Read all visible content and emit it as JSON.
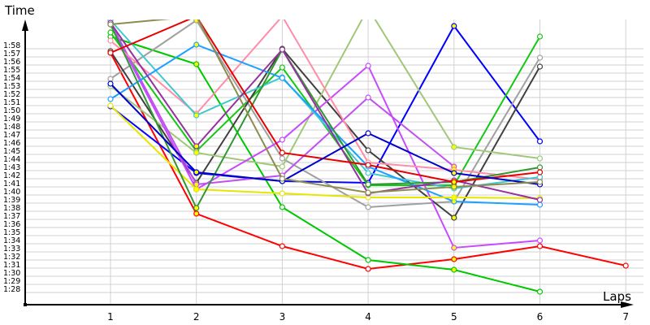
{
  "chart_data": {
    "type": "line",
    "title": "",
    "xlabel": "Laps",
    "ylabel": "Time",
    "x": [
      1,
      2,
      3,
      4,
      5,
      6,
      7
    ],
    "x_ticks": [
      "1",
      "2",
      "3",
      "4",
      "5",
      "6",
      "7"
    ],
    "y_ticks": [
      "1:58",
      "1:57",
      "1:56",
      "1:55",
      "1:54",
      "1:53",
      "1:52",
      "1:51",
      "1:50",
      "1:49",
      "1:48",
      "1:47",
      "1:46",
      "1:45",
      "1:44",
      "1:43",
      "1:42",
      "1:41",
      "1:40",
      "1:39",
      "1:38",
      "1:37",
      "1:36",
      "1:35",
      "1:34",
      "1:33",
      "1:32",
      "1:31",
      "1:30",
      "1:29",
      "1:28"
    ],
    "y_unit": "seconds (m:ss)",
    "ylim_seconds": [
      86.5,
      121.5
    ],
    "grid": true,
    "legend": "none",
    "series": [
      {
        "name": "red-a",
        "color": "#ff0000",
        "values": [
          117.5,
          97.7,
          93.7,
          90.9,
          92.1,
          93.7,
          91.3
        ]
      },
      {
        "name": "green-a",
        "color": "#00c800",
        "values": [
          119.5,
          116.1,
          98.5,
          92.0,
          90.8,
          88.1,
          null
        ]
      },
      {
        "name": "blue-a",
        "color": "#0000ff",
        "values": [
          110.9,
          102.7,
          101.7,
          101.5,
          120.8,
          106.6,
          null
        ]
      },
      {
        "name": "green-b",
        "color": "#14c814",
        "values": [
          120.0,
          105.4,
          115.7,
          101.2,
          101.2,
          119.5,
          null
        ]
      },
      {
        "name": "grey-a",
        "color": "#a0a0a0",
        "values": [
          114.3,
          121.5,
          104.5,
          98.5,
          99.2,
          116.9,
          null
        ]
      },
      {
        "name": "darkgrey-a",
        "color": "#404040",
        "values": [
          117.7,
          101.5,
          118.0,
          105.5,
          97.2,
          115.8,
          null
        ]
      },
      {
        "name": "lightgreen-a",
        "color": "#a0c878",
        "values": [
          113.4,
          105.2,
          103.5,
          123.0,
          105.9,
          104.5,
          null
        ]
      },
      {
        "name": "magenta-a",
        "color": "#c84aff",
        "values": [
          121.0,
          100.7,
          106.8,
          115.9,
          93.5,
          94.4,
          null
        ]
      },
      {
        "name": "magenta-b",
        "color": "#c050f0",
        "values": [
          121.2,
          101.3,
          102.4,
          112.0,
          103.5,
          null,
          null
        ]
      },
      {
        "name": "pink-a",
        "color": "#ff8ca8",
        "values": [
          119.0,
          110.0,
          122.0,
          104.0,
          103.1,
          101.9,
          null
        ]
      },
      {
        "name": "cyan-a",
        "color": "#40c8d0",
        "values": [
          121.5,
          109.8,
          114.5,
          102.7,
          100.8,
          102.2,
          null
        ]
      },
      {
        "name": "skyblue-a",
        "color": "#1ea0ff",
        "values": [
          111.8,
          118.5,
          114.4,
          103.5,
          99.2,
          98.8,
          null
        ]
      },
      {
        "name": "yellow-a",
        "color": "#e6e600",
        "values": [
          111.0,
          100.7,
          100.2,
          99.7,
          99.7,
          99.6,
          null
        ]
      },
      {
        "name": "darkgreen-a",
        "color": "#329632",
        "values": [
          121.0,
          98.4,
          117.9,
          101.3,
          101.6,
          103.4,
          null
        ]
      },
      {
        "name": "purple-a",
        "color": "#9632a0",
        "values": [
          121.2,
          106.0,
          117.9,
          100.2,
          101.8,
          99.4,
          null
        ]
      },
      {
        "name": "red-b",
        "color": "#e60000",
        "values": [
          117.5,
          122.0,
          105.2,
          103.7,
          101.6,
          102.8,
          null
        ]
      },
      {
        "name": "navy-a",
        "color": "#0000c8",
        "values": [
          113.7,
          102.8,
          101.7,
          107.6,
          102.7,
          101.3,
          null
        ]
      },
      {
        "name": "olive-a",
        "color": "#8c8c50",
        "values": [
          121.0,
          122.0,
          102.0,
          100.3,
          101.0,
          101.6,
          null
        ]
      }
    ]
  }
}
